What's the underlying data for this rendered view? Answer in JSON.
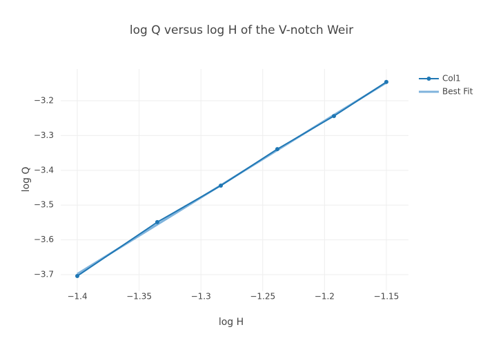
{
  "chart_data": {
    "type": "line",
    "title": "log Q versus log H of the V-notch Weir",
    "x_label": "log H",
    "y_label": "log Q",
    "x": [
      -1.4,
      -1.3353,
      -1.2839,
      -1.2382,
      -1.1924,
      -1.15
    ],
    "series": [
      {
        "name": "Col1",
        "color": "#1f77b4",
        "width": 2,
        "markers": true,
        "values": [
          -3.704,
          -3.549,
          -3.444,
          -3.339,
          -3.244,
          -3.146
        ]
      },
      {
        "name": "Best Fit",
        "color": "#7fb3dc",
        "width": 3,
        "markers": false,
        "values": [
          -3.698,
          -3.556,
          -3.443,
          -3.342,
          -3.241,
          -3.148
        ]
      }
    ],
    "xlim": [
      -1.4134,
      -1.1321
    ],
    "ylim": [
      -3.7476,
      -3.1087
    ],
    "xticks": [
      {
        "value": -1.4,
        "label": "−1.4"
      },
      {
        "value": -1.35,
        "label": "−1.35"
      },
      {
        "value": -1.3,
        "label": "−1.3"
      },
      {
        "value": -1.25,
        "label": "−1.25"
      },
      {
        "value": -1.2,
        "label": "−1.2"
      },
      {
        "value": -1.15,
        "label": "−1.15"
      }
    ],
    "yticks": [
      {
        "value": -3.7,
        "label": "−3.7"
      },
      {
        "value": -3.6,
        "label": "−3.6"
      },
      {
        "value": -3.5,
        "label": "−3.5"
      },
      {
        "value": -3.4,
        "label": "−3.4"
      },
      {
        "value": -3.3,
        "label": "−3.3"
      },
      {
        "value": -3.2,
        "label": "−3.2"
      }
    ],
    "grid": true,
    "legend": "top-right"
  }
}
